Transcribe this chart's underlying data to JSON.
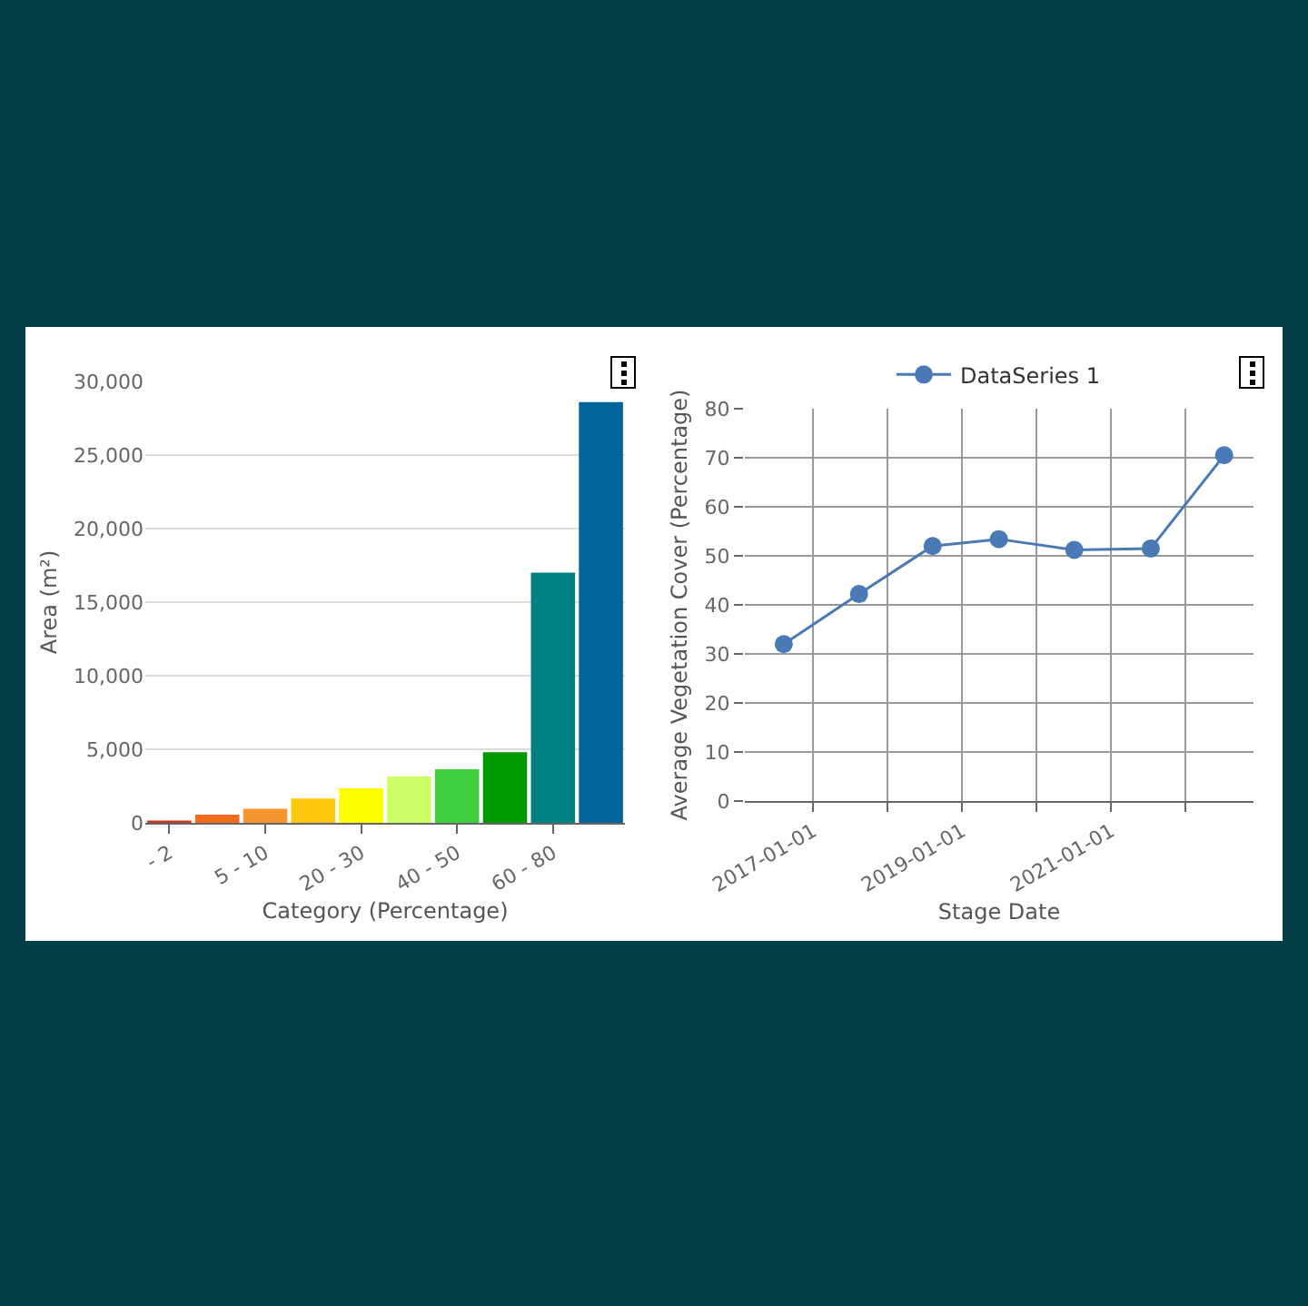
{
  "chart_data": [
    {
      "type": "bar",
      "xlabel": "Category (Percentage)",
      "ylabel": "Area (m²)",
      "categories": [
        "- 2",
        null,
        "5 - 10",
        null,
        "20 - 30",
        null,
        "40 - 50",
        null,
        "60 - 80",
        null
      ],
      "values": [
        150,
        550,
        950,
        1650,
        2350,
        3150,
        3650,
        4800,
        17000,
        28600
      ],
      "colors": [
        "#d7301f",
        "#f26b1d",
        "#f7962f",
        "#fdc70c",
        "#ffff00",
        "#ccff66",
        "#3ecf3e",
        "#009900",
        "#008080",
        "#006699"
      ],
      "ylim": [
        0,
        30000
      ],
      "yticks": [
        {
          "value": 0,
          "label": "0"
        },
        {
          "value": 5000,
          "label": "5,000"
        },
        {
          "value": 10000,
          "label": "10,000"
        },
        {
          "value": 15000,
          "label": "15,000"
        },
        {
          "value": 20000,
          "label": "20,000"
        },
        {
          "value": 25000,
          "label": "25,000"
        },
        {
          "value": 30000,
          "label": "30,000"
        }
      ],
      "grid": "y",
      "legend": false
    },
    {
      "type": "line",
      "xlabel": "Stage Date",
      "ylabel": "Average Vegetation Cover (Percentage)",
      "x": [
        "2016-08-10",
        "2017-08-14",
        "2018-08-10",
        "2019-07-01",
        "2020-07-05",
        "2021-07-15",
        "2022-07-10"
      ],
      "series": [
        {
          "name": "DataSeries 1",
          "color": "#4a7ab5",
          "values": [
            32,
            42.2,
            52,
            53.4,
            51.2,
            51.5,
            70.5
          ]
        }
      ],
      "xlim": [
        "2016-02-01",
        "2022-12-01"
      ],
      "xticks": [
        {
          "value": "2017-01-01",
          "label": "2017-01-01"
        },
        {
          "value": "2018-01-01",
          "label": null
        },
        {
          "value": "2019-01-01",
          "label": "2019-01-01"
        },
        {
          "value": "2020-01-01",
          "label": null
        },
        {
          "value": "2021-01-01",
          "label": "2021-01-01"
        },
        {
          "value": "2022-01-01",
          "label": null
        }
      ],
      "ylim": [
        0,
        80
      ],
      "yticks": [
        0,
        10,
        20,
        30,
        40,
        50,
        60,
        70,
        80
      ],
      "grid": true,
      "legend": "top",
      "marker": "circle",
      "line_style": "solid"
    }
  ]
}
